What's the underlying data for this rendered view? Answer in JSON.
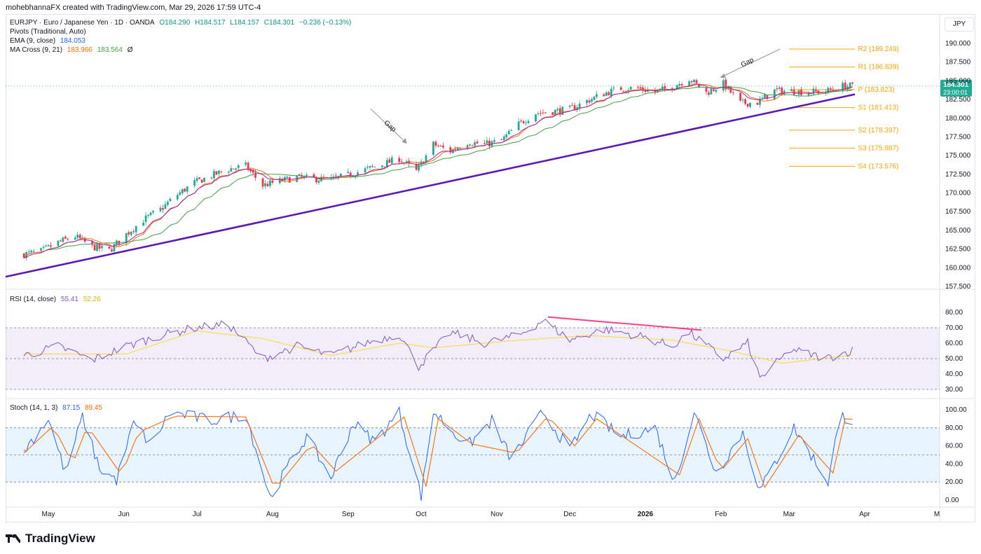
{
  "header": {
    "credit": "mohebhannaFX created with TradingView.com, Mar 29, 2026 17:59 UTC-4"
  },
  "currency_button": "JPY",
  "legend_main": {
    "symbol": "EURJPY · Euro / Japanese Yen · 1D · OANDA",
    "open": "O184.290",
    "high": "H184.517",
    "low": "L184.157",
    "close": "C184.301",
    "change": "−0.236 (−0.13%)",
    "pivots": "Pivots (Traditional, Auto)",
    "ema_label": "EMA (9, close)",
    "ema_value": "184.053",
    "ma_label": "MA Cross (9, 21)",
    "ma_fast": "183.966",
    "ma_slow": "183.564",
    "ma_extra": "Ø"
  },
  "legend_rsi": {
    "label": "RSI (14, close)",
    "rsi": "55.41",
    "ma": "52.26"
  },
  "legend_stoch": {
    "label": "Stoch (14, 1, 3)",
    "k": "87.15",
    "d": "89.45"
  },
  "price_tag": {
    "price": "184.301",
    "countdown": "23:00:01"
  },
  "pivot_levels": [
    {
      "label": "R2 (189.249)",
      "value": 189.249
    },
    {
      "label": "R1 (186.839)",
      "value": 186.839
    },
    {
      "label": "P (183.823)",
      "value": 183.823
    },
    {
      "label": "S1 (181.413)",
      "value": 181.413
    },
    {
      "label": "S2 (178.397)",
      "value": 178.397
    },
    {
      "label": "S3 (175.987)",
      "value": 175.987
    },
    {
      "label": "S4 (173.576)",
      "value": 173.576
    }
  ],
  "annotations": [
    {
      "text": "Gap",
      "at": "2025-09-26"
    },
    {
      "text": "Gap",
      "at": "2026-01-31"
    }
  ],
  "colors": {
    "up": "#22ab94",
    "down": "#f23645",
    "ema": "#2962ff",
    "ma_fast": "#ff6d00",
    "ma_slow": "#43a047",
    "trendline": "#5b19b5",
    "rsi": "#7e57c2",
    "rsi_ma": "#fdd835",
    "stoch_k": "#2962ff",
    "stoch_d": "#ff6d00",
    "pivot": "#f7a600",
    "divergence": "#ff4081"
  },
  "chart_data": [
    {
      "type": "candlestick",
      "title": "EURJPY · Euro / Japanese Yen · 1D · OANDA",
      "ylim": [
        157.5,
        190.0
      ],
      "y_ticks": [
        "190.000",
        "187.500",
        "185.000",
        "182.500",
        "180.000",
        "177.500",
        "175.000",
        "172.500",
        "170.000",
        "167.500",
        "165.000",
        "162.500",
        "160.000",
        "157.500"
      ],
      "x_ticks": [
        "May",
        "Jun",
        "Jul",
        "Aug",
        "Sep",
        "Oct",
        "Nov",
        "Dec",
        "2026",
        "Feb",
        "Mar",
        "Apr",
        "M"
      ],
      "close_path": [
        {
          "d": "2025-04-21",
          "c": 161.8
        },
        {
          "d": "2025-04-28",
          "c": 162.2
        },
        {
          "d": "2025-05-05",
          "c": 163.4
        },
        {
          "d": "2025-05-12",
          "c": 164.2
        },
        {
          "d": "2025-05-19",
          "c": 162.8
        },
        {
          "d": "2025-05-26",
          "c": 162.3
        },
        {
          "d": "2025-06-02",
          "c": 164.5
        },
        {
          "d": "2025-06-09",
          "c": 166.4
        },
        {
          "d": "2025-06-16",
          "c": 167.8
        },
        {
          "d": "2025-06-23",
          "c": 169.8
        },
        {
          "d": "2025-06-30",
          "c": 171.4
        },
        {
          "d": "2025-07-07",
          "c": 172.3
        },
        {
          "d": "2025-07-14",
          "c": 173.2
        },
        {
          "d": "2025-07-21",
          "c": 173.6
        },
        {
          "d": "2025-07-28",
          "c": 171.0
        },
        {
          "d": "2025-08-04",
          "c": 171.6
        },
        {
          "d": "2025-08-11",
          "c": 172.1
        },
        {
          "d": "2025-08-18",
          "c": 171.9
        },
        {
          "d": "2025-08-25",
          "c": 171.8
        },
        {
          "d": "2025-09-01",
          "c": 172.4
        },
        {
          "d": "2025-09-08",
          "c": 173.1
        },
        {
          "d": "2025-09-15",
          "c": 173.8
        },
        {
          "d": "2025-09-22",
          "c": 174.6
        },
        {
          "d": "2025-09-29",
          "c": 172.9
        },
        {
          "d": "2025-10-06",
          "c": 176.5
        },
        {
          "d": "2025-10-13",
          "c": 175.6
        },
        {
          "d": "2025-10-20",
          "c": 176.8
        },
        {
          "d": "2025-10-27",
          "c": 176.5
        },
        {
          "d": "2025-11-03",
          "c": 177.0
        },
        {
          "d": "2025-11-10",
          "c": 179.2
        },
        {
          "d": "2025-11-17",
          "c": 180.7
        },
        {
          "d": "2025-11-24",
          "c": 180.9
        },
        {
          "d": "2025-12-01",
          "c": 181.2
        },
        {
          "d": "2025-12-08",
          "c": 182.3
        },
        {
          "d": "2025-12-15",
          "c": 183.3
        },
        {
          "d": "2025-12-22",
          "c": 184.0
        },
        {
          "d": "2025-12-29",
          "c": 184.0
        },
        {
          "d": "2026-01-05",
          "c": 183.5
        },
        {
          "d": "2026-01-12",
          "c": 184.2
        },
        {
          "d": "2026-01-19",
          "c": 185.3
        },
        {
          "d": "2026-01-26",
          "c": 183.4
        },
        {
          "d": "2026-02-02",
          "c": 184.6
        },
        {
          "d": "2026-02-09",
          "c": 182.0
        },
        {
          "d": "2026-02-16",
          "c": 182.1
        },
        {
          "d": "2026-02-23",
          "c": 183.7
        },
        {
          "d": "2026-03-02",
          "c": 183.6
        },
        {
          "d": "2026-03-09",
          "c": 183.5
        },
        {
          "d": "2026-03-16",
          "c": 183.6
        },
        {
          "d": "2026-03-23",
          "c": 184.3
        },
        {
          "d": "2026-03-27",
          "c": 184.301
        }
      ],
      "trendline": [
        {
          "d": "2025-04-18",
          "v": 158.8
        },
        {
          "d": "2026-03-28",
          "v": 183.2
        }
      ]
    },
    {
      "type": "line",
      "title": "RSI (14, close)",
      "ylim": [
        25,
        82
      ],
      "y_ticks": [
        "80.00",
        "70.00",
        "60.00",
        "50.00",
        "40.00",
        "30.00"
      ],
      "bands": [
        70,
        50,
        30
      ],
      "series": [
        {
          "name": "RSI",
          "values": [
            {
              "d": "2025-04-21",
              "v": 52
            },
            {
              "d": "2025-05-05",
              "v": 58
            },
            {
              "d": "2025-05-19",
              "v": 49
            },
            {
              "d": "2025-06-02",
              "v": 58
            },
            {
              "d": "2025-06-16",
              "v": 65
            },
            {
              "d": "2025-06-30",
              "v": 70
            },
            {
              "d": "2025-07-14",
              "v": 72
            },
            {
              "d": "2025-07-28",
              "v": 50
            },
            {
              "d": "2025-08-11",
              "v": 58
            },
            {
              "d": "2025-08-25",
              "v": 52
            },
            {
              "d": "2025-09-08",
              "v": 60
            },
            {
              "d": "2025-09-22",
              "v": 66
            },
            {
              "d": "2025-09-30",
              "v": 45
            },
            {
              "d": "2025-10-13",
              "v": 67
            },
            {
              "d": "2025-10-27",
              "v": 60
            },
            {
              "d": "2025-11-10",
              "v": 65
            },
            {
              "d": "2025-11-20",
              "v": 75
            },
            {
              "d": "2025-12-01",
              "v": 62
            },
            {
              "d": "2025-12-15",
              "v": 69
            },
            {
              "d": "2025-12-29",
              "v": 65
            },
            {
              "d": "2026-01-12",
              "v": 58
            },
            {
              "d": "2026-01-19",
              "v": 67
            },
            {
              "d": "2026-02-02",
              "v": 50
            },
            {
              "d": "2026-02-12",
              "v": 60
            },
            {
              "d": "2026-02-17",
              "v": 37
            },
            {
              "d": "2026-03-02",
              "v": 56
            },
            {
              "d": "2026-03-16",
              "v": 50
            },
            {
              "d": "2026-03-27",
              "v": 55.41
            }
          ]
        },
        {
          "name": "RSI MA",
          "values": [
            {
              "d": "2025-04-21",
              "v": 53
            },
            {
              "d": "2025-06-02",
              "v": 53
            },
            {
              "d": "2025-07-01",
              "v": 68
            },
            {
              "d": "2025-07-28",
              "v": 63
            },
            {
              "d": "2025-08-25",
              "v": 52
            },
            {
              "d": "2025-09-22",
              "v": 60
            },
            {
              "d": "2025-10-06",
              "v": 57
            },
            {
              "d": "2025-11-03",
              "v": 61
            },
            {
              "d": "2025-12-08",
              "v": 65
            },
            {
              "d": "2026-01-12",
              "v": 62
            },
            {
              "d": "2026-02-05",
              "v": 55
            },
            {
              "d": "2026-02-26",
              "v": 47
            },
            {
              "d": "2026-03-27",
              "v": 52.26
            }
          ]
        }
      ],
      "divergence_line": [
        {
          "d": "2025-11-22",
          "v": 77
        },
        {
          "d": "2026-01-24",
          "v": 68.5
        }
      ]
    },
    {
      "type": "line",
      "title": "Stoch (14, 1, 3)",
      "ylim": [
        -5,
        105
      ],
      "y_ticks": [
        "100.00",
        "80.00",
        "60.00",
        "40.00",
        "20.00",
        "0.00"
      ],
      "bands": [
        80,
        50,
        20
      ],
      "series": [
        {
          "name": "%K",
          "values": [
            {
              "d": "2025-04-21",
              "v": 55
            },
            {
              "d": "2025-05-01",
              "v": 90
            },
            {
              "d": "2025-05-08",
              "v": 30
            },
            {
              "d": "2025-05-15",
              "v": 92
            },
            {
              "d": "2025-05-22",
              "v": 35
            },
            {
              "d": "2025-05-29",
              "v": 22
            },
            {
              "d": "2025-06-05",
              "v": 85
            },
            {
              "d": "2025-06-12",
              "v": 62
            },
            {
              "d": "2025-06-20",
              "v": 97
            },
            {
              "d": "2025-07-07",
              "v": 88
            },
            {
              "d": "2025-07-21",
              "v": 95
            },
            {
              "d": "2025-07-31",
              "v": 3
            },
            {
              "d": "2025-08-08",
              "v": 40
            },
            {
              "d": "2025-08-15",
              "v": 70
            },
            {
              "d": "2025-08-25",
              "v": 25
            },
            {
              "d": "2025-09-03",
              "v": 85
            },
            {
              "d": "2025-09-12",
              "v": 65
            },
            {
              "d": "2025-09-22",
              "v": 97
            },
            {
              "d": "2025-10-01",
              "v": 5
            },
            {
              "d": "2025-10-06",
              "v": 98
            },
            {
              "d": "2025-10-20",
              "v": 60
            },
            {
              "d": "2025-10-30",
              "v": 88
            },
            {
              "d": "2025-11-07",
              "v": 45
            },
            {
              "d": "2025-11-20",
              "v": 98
            },
            {
              "d": "2025-12-01",
              "v": 55
            },
            {
              "d": "2025-12-10",
              "v": 95
            },
            {
              "d": "2025-12-22",
              "v": 70
            },
            {
              "d": "2026-01-05",
              "v": 80
            },
            {
              "d": "2026-01-13",
              "v": 20
            },
            {
              "d": "2026-01-21",
              "v": 98
            },
            {
              "d": "2026-01-30",
              "v": 30
            },
            {
              "d": "2026-02-10",
              "v": 75
            },
            {
              "d": "2026-02-17",
              "v": 10
            },
            {
              "d": "2026-03-03",
              "v": 80
            },
            {
              "d": "2026-03-17",
              "v": 20
            },
            {
              "d": "2026-03-22",
              "v": 95
            },
            {
              "d": "2026-03-27",
              "v": 87.15
            }
          ]
        },
        {
          "name": "%D",
          "values": [
            {
              "d": "2025-04-21",
              "v": 52
            },
            {
              "d": "2025-05-03",
              "v": 82
            },
            {
              "d": "2025-05-11",
              "v": 40
            },
            {
              "d": "2025-05-17",
              "v": 82
            },
            {
              "d": "2025-05-31",
              "v": 28
            },
            {
              "d": "2025-06-07",
              "v": 75
            },
            {
              "d": "2025-06-22",
              "v": 93
            },
            {
              "d": "2025-07-21",
              "v": 92
            },
            {
              "d": "2025-08-02",
              "v": 12
            },
            {
              "d": "2025-08-17",
              "v": 62
            },
            {
              "d": "2025-08-27",
              "v": 32
            },
            {
              "d": "2025-09-24",
              "v": 92
            },
            {
              "d": "2025-10-03",
              "v": 15
            },
            {
              "d": "2025-10-08",
              "v": 90
            },
            {
              "d": "2025-10-22",
              "v": 62
            },
            {
              "d": "2025-11-09",
              "v": 52
            },
            {
              "d": "2025-11-22",
              "v": 93
            },
            {
              "d": "2025-12-03",
              "v": 60
            },
            {
              "d": "2025-12-12",
              "v": 90
            },
            {
              "d": "2026-01-15",
              "v": 28
            },
            {
              "d": "2026-01-23",
              "v": 90
            },
            {
              "d": "2026-02-01",
              "v": 32
            },
            {
              "d": "2026-02-12",
              "v": 68
            },
            {
              "d": "2026-02-19",
              "v": 14
            },
            {
              "d": "2026-03-05",
              "v": 72
            },
            {
              "d": "2026-03-19",
              "v": 30
            },
            {
              "d": "2026-03-24",
              "v": 90
            },
            {
              "d": "2026-03-27",
              "v": 89.45
            }
          ]
        }
      ]
    }
  ]
}
